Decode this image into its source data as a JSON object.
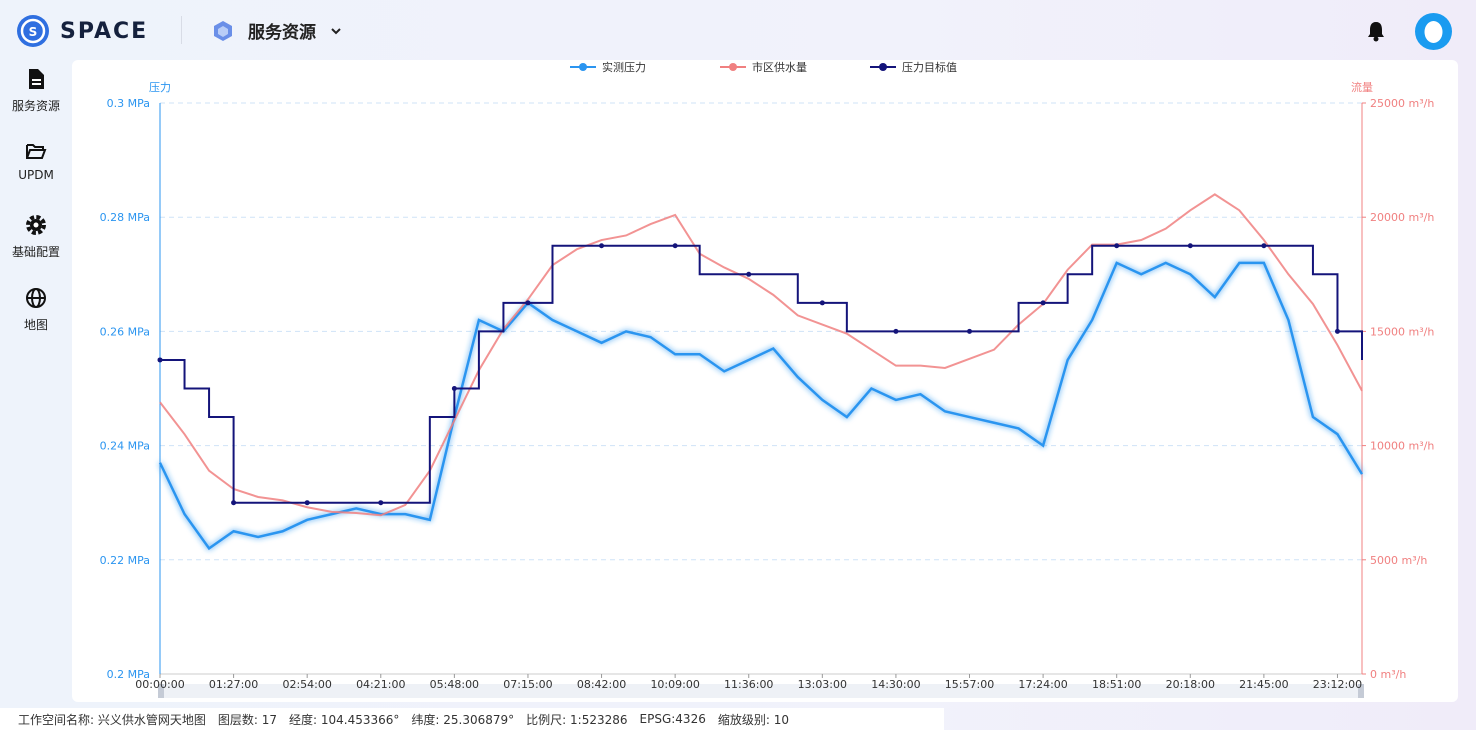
{
  "header": {
    "brand": "SPACE",
    "menu": "服务资源"
  },
  "sidebar": {
    "items": [
      "服务资源",
      "UPDM",
      "基础配置",
      "地图"
    ]
  },
  "chart_data": {
    "type": "line",
    "categories": [
      "00:00:00",
      null,
      null,
      "01:27:00",
      null,
      null,
      "02:54:00",
      null,
      null,
      "04:21:00",
      null,
      null,
      "05:48:00",
      null,
      null,
      "07:15:00",
      null,
      null,
      "08:42:00",
      null,
      null,
      "10:09:00",
      null,
      null,
      "11:36:00",
      null,
      null,
      "13:03:00",
      null,
      null,
      "14:30:00",
      null,
      null,
      "15:57:00",
      null,
      null,
      "17:24:00",
      null,
      null,
      "18:51:00",
      null,
      null,
      "20:18:00",
      null,
      null,
      "21:45:00",
      null,
      null,
      "23:12:00",
      null
    ],
    "y_label": "压力",
    "y2_label": "流量",
    "legend": "top",
    "grid": true,
    "ylim": [
      0.2,
      0.3
    ],
    "yticks": [
      {
        "value": 0.2,
        "label": "0.2 MPa"
      },
      {
        "value": 0.22,
        "label": "0.22 MPa"
      },
      {
        "value": 0.24,
        "label": "0.24 MPa"
      },
      {
        "value": 0.26,
        "label": "0.26 MPa"
      },
      {
        "value": 0.28,
        "label": "0.28 MPa"
      },
      {
        "value": 0.3,
        "label": "0.3 MPa"
      }
    ],
    "y2lim": [
      0,
      25000
    ],
    "y2ticks": [
      {
        "value": 0,
        "label": "0 m³/h"
      },
      {
        "value": 5000,
        "label": "5000 m³/h"
      },
      {
        "value": 10000,
        "label": "10000 m³/h"
      },
      {
        "value": 15000,
        "label": "15000 m³/h"
      },
      {
        "value": 20000,
        "label": "20000 m³/h"
      },
      {
        "value": 25000,
        "label": "25000 m³/h"
      }
    ],
    "series": [
      {
        "name": "实测压力",
        "color": "#2b95f0",
        "values": [
          0.237,
          0.228,
          0.222,
          0.225,
          0.224,
          0.225,
          0.227,
          0.228,
          0.229,
          0.228,
          0.228,
          0.227,
          0.245,
          0.262,
          0.26,
          0.265,
          0.262,
          0.26,
          0.258,
          0.26,
          0.259,
          0.256,
          0.256,
          0.253,
          0.255,
          0.257,
          0.252,
          0.248,
          0.245,
          0.25,
          0.248,
          0.249,
          0.246,
          0.245,
          0.244,
          0.243,
          0.24,
          0.255,
          0.262,
          0.272,
          0.27,
          0.272,
          0.27,
          0.266,
          0.272,
          0.272,
          0.262,
          0.245,
          0.242,
          0.235
        ]
      },
      {
        "name": "市区供水量",
        "color": "#f08080",
        "axis": "y2",
        "values": [
          11900,
          10500,
          8900,
          8100,
          7750,
          7600,
          7300,
          7100,
          7050,
          6950,
          7400,
          8900,
          11100,
          13300,
          15100,
          16400,
          17900,
          18600,
          19000,
          19200,
          19700,
          20100,
          18400,
          17800,
          17300,
          16600,
          15700,
          15300,
          14900,
          14200,
          13500,
          13500,
          13400,
          13800,
          14200,
          15300,
          16200,
          17700,
          18800,
          18800,
          19000,
          19500,
          20300,
          21000,
          20300,
          19000,
          17500,
          16200,
          14400,
          12400
        ]
      },
      {
        "name": "压力目标值",
        "color": "#14147a",
        "values": [
          0.255,
          0.25,
          0.245,
          0.23,
          0.23,
          0.23,
          0.23,
          0.23,
          0.23,
          0.23,
          0.23,
          0.245,
          0.25,
          0.26,
          0.265,
          0.265,
          0.275,
          0.275,
          0.275,
          0.275,
          0.275,
          0.275,
          0.27,
          0.27,
          0.27,
          0.27,
          0.265,
          0.265,
          0.26,
          0.26,
          0.26,
          0.26,
          0.26,
          0.26,
          0.26,
          0.265,
          0.265,
          0.27,
          0.275,
          0.275,
          0.275,
          0.275,
          0.275,
          0.275,
          0.275,
          0.275,
          0.275,
          0.27,
          0.26,
          0.255
        ]
      }
    ]
  },
  "status_bar": {
    "items": [
      "工作空间名称: 兴义供水管网天地图",
      "图层数: 17",
      "经度: 104.453366°",
      "纬度: 25.306879°",
      "比例尺: 1:523286",
      "EPSG:4326",
      "缩放级别: 10"
    ]
  }
}
